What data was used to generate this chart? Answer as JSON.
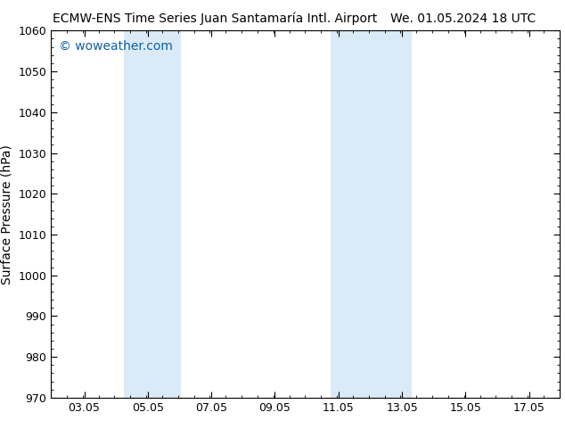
{
  "title_left": "ECMW-ENS Time Series Juan Santamaría Intl. Airport",
  "title_right": "We. 01.05.2024 18 UTC",
  "ylabel": "Surface Pressure (hPa)",
  "watermark": "© woweather.com",
  "ylim": [
    970,
    1060
  ],
  "yticks": [
    970,
    980,
    990,
    1000,
    1010,
    1020,
    1030,
    1040,
    1050,
    1060
  ],
  "xlim": [
    2.0,
    18.0
  ],
  "xticks": [
    3.05,
    5.05,
    7.05,
    9.05,
    11.05,
    13.05,
    15.05,
    17.05
  ],
  "xtick_labels": [
    "03.05",
    "05.05",
    "07.05",
    "09.05",
    "11.05",
    "13.05",
    "15.05",
    "17.05"
  ],
  "shaded_bands": [
    {
      "x_start": 4.3,
      "x_end": 5.0
    },
    {
      "x_start": 5.0,
      "x_end": 6.1
    },
    {
      "x_start": 10.8,
      "x_end": 11.55
    },
    {
      "x_start": 11.55,
      "x_end": 13.35
    }
  ],
  "band_color": "#daeaf6",
  "background_color": "#ffffff",
  "watermark_color": "#1060a0",
  "title_fontsize": 10,
  "ylabel_fontsize": 10,
  "tick_fontsize": 9,
  "watermark_fontsize": 10
}
